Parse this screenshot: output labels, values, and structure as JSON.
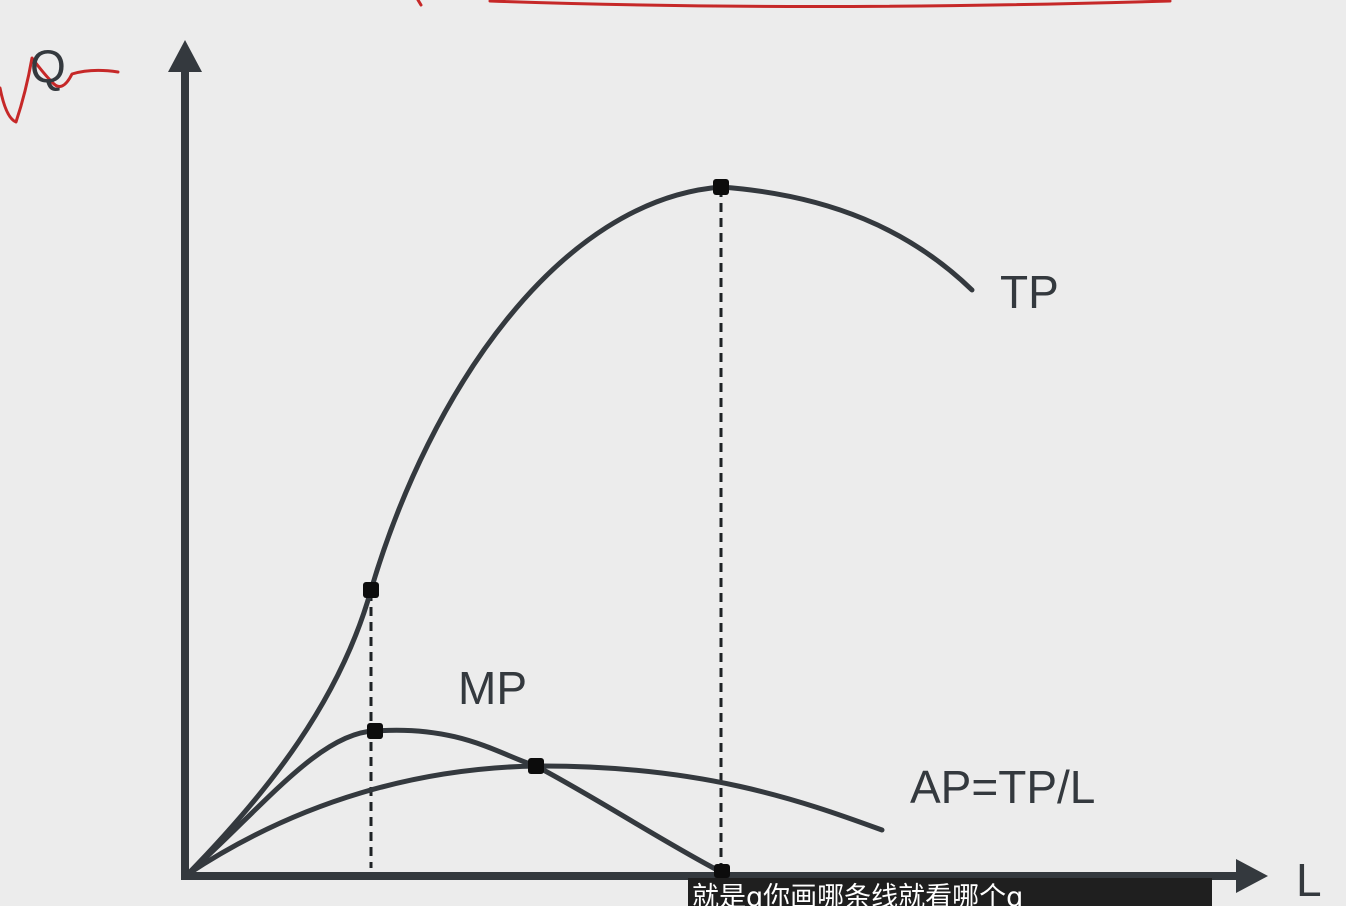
{
  "diagram": {
    "y_axis_label": "Q",
    "x_axis_label": "L",
    "curves": {
      "tp": "TP",
      "mp": "MP",
      "ap": "AP=TP/L"
    }
  },
  "subtitle": {
    "text": "就是q你画哪条线就看哪个q"
  },
  "colors": {
    "background": "#ececec",
    "ink": "#34393e",
    "annotation": "#c62828",
    "subtitle_bg": "#1f1f1f",
    "subtitle_text": "#ffffff"
  }
}
